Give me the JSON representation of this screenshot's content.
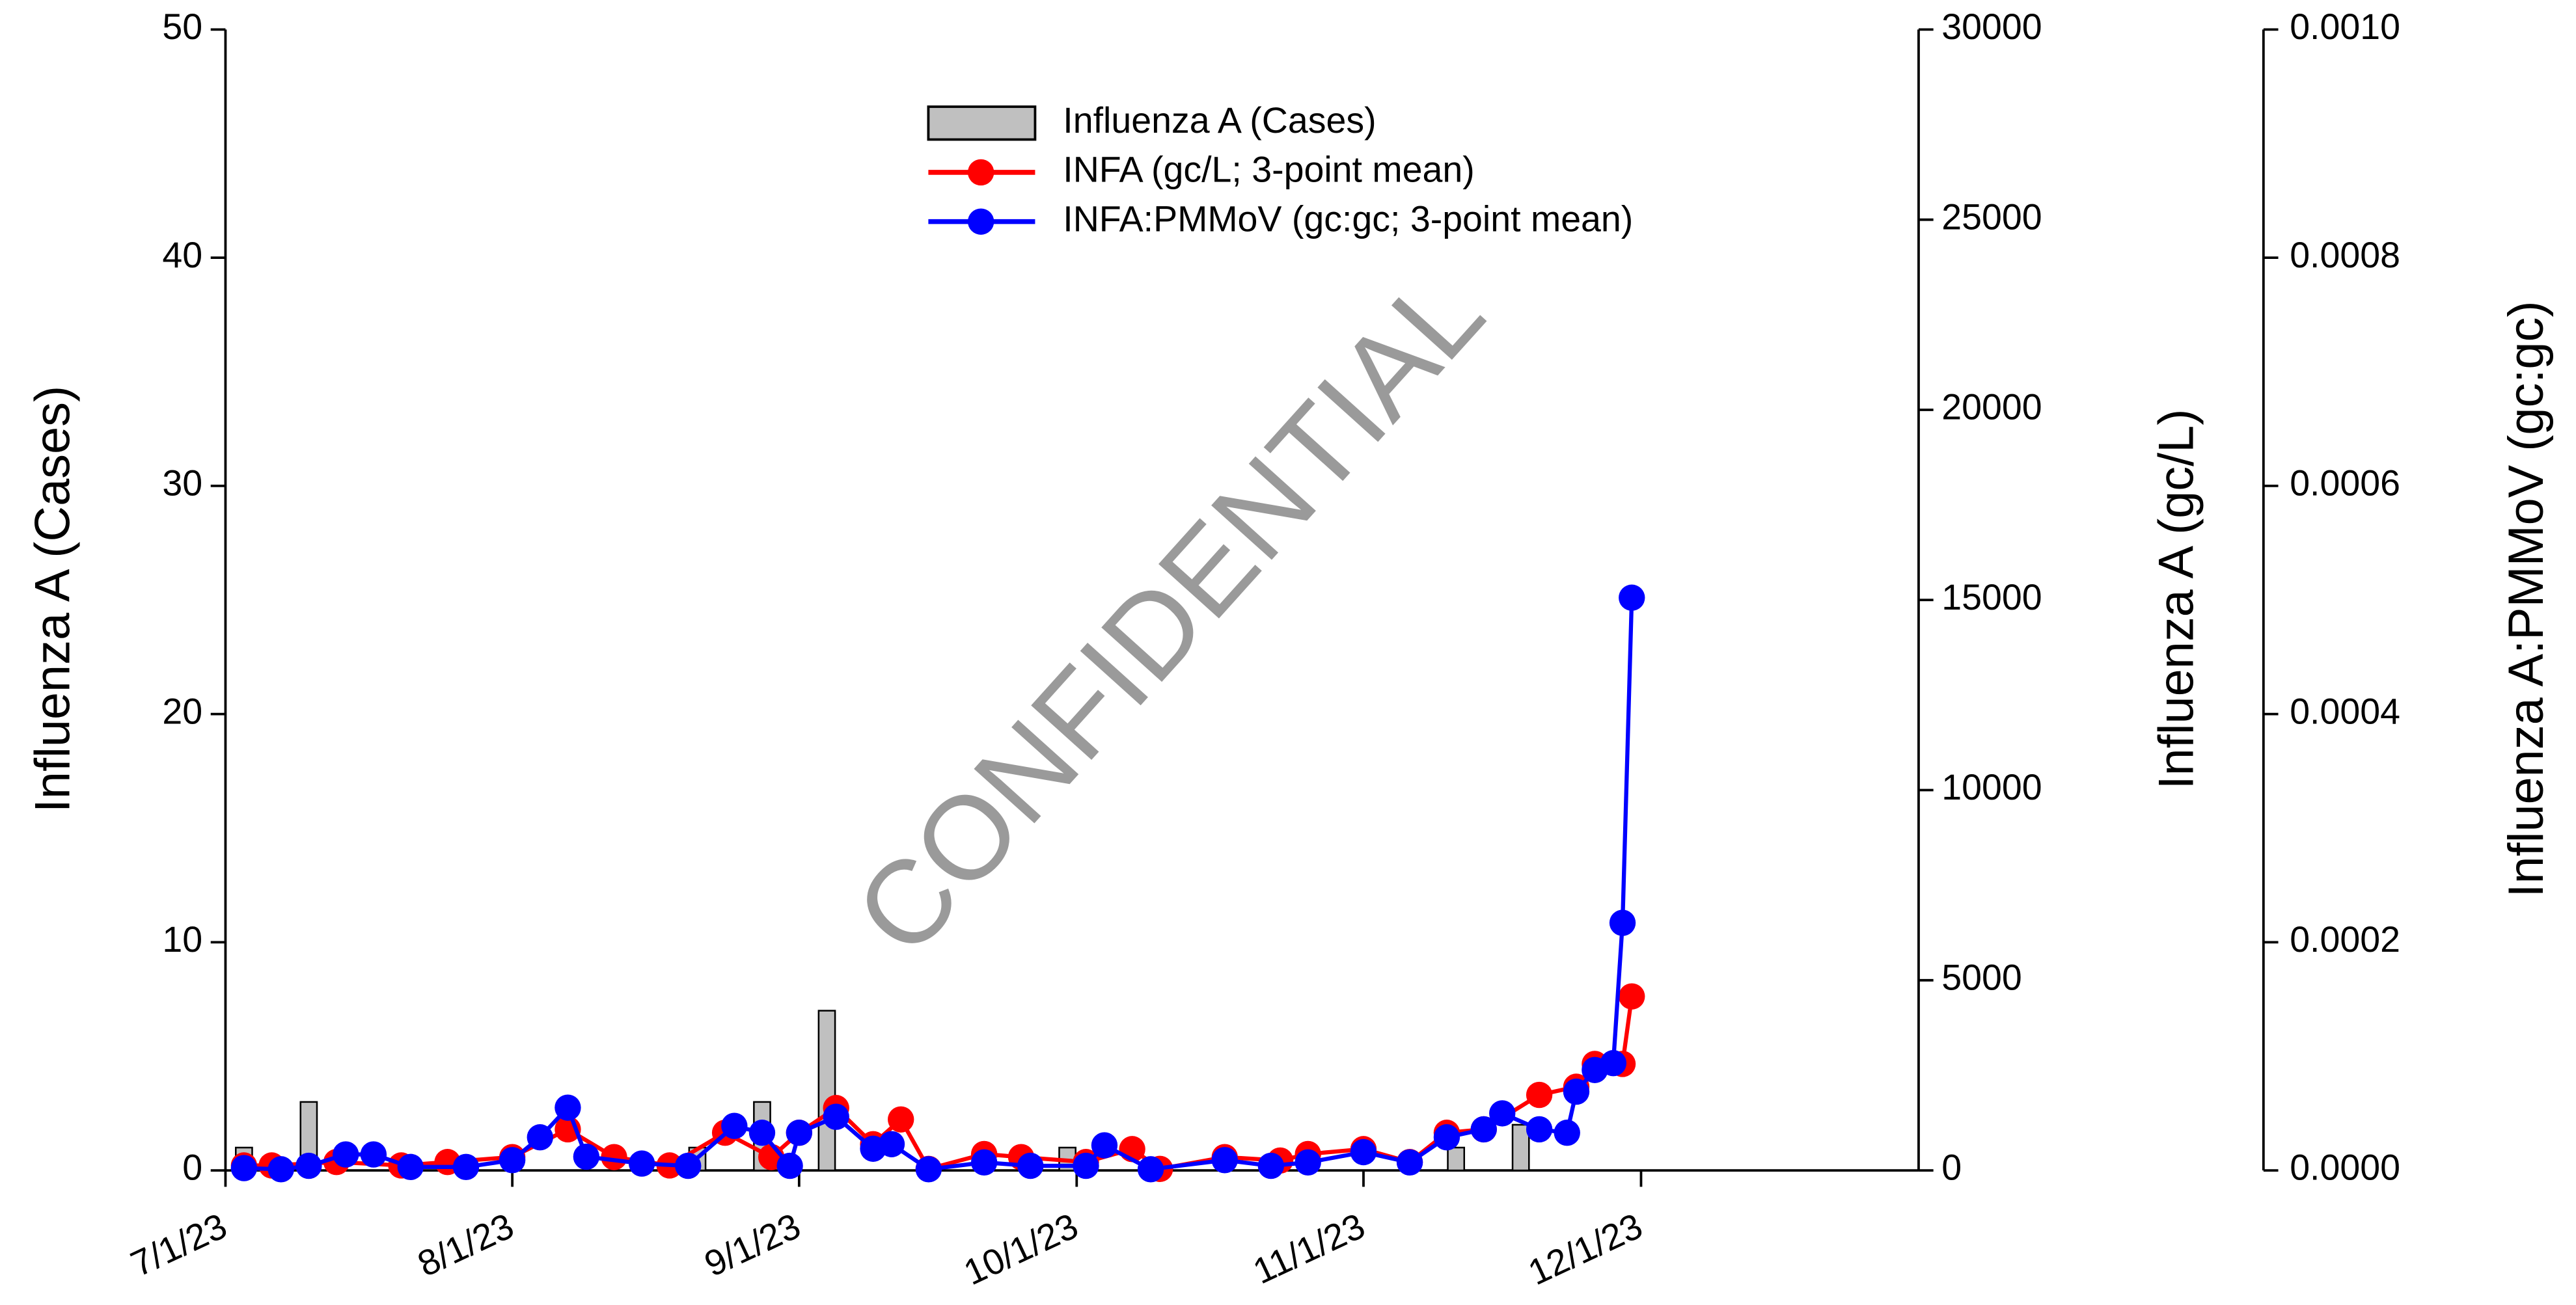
{
  "chart_data": {
    "type": "combo",
    "watermark": "CONFIDENTIAL",
    "ylabel": "Influenza A (Cases)",
    "y2label": "Influenza A (gc/L)",
    "y3label": "Influenza A:PMMoV (gc:gc)",
    "xlim": [
      "2023-07-01",
      "2023-12-31"
    ],
    "xticks": [
      {
        "value": "2023-07-01",
        "label": "7/1/23"
      },
      {
        "value": "2023-08-01",
        "label": "8/1/23"
      },
      {
        "value": "2023-09-01",
        "label": "9/1/23"
      },
      {
        "value": "2023-10-01",
        "label": "10/1/23"
      },
      {
        "value": "2023-11-01",
        "label": "11/1/23"
      },
      {
        "value": "2023-12-01",
        "label": "12/1/23"
      }
    ],
    "ylim": [
      0,
      50
    ],
    "yticks": [
      0,
      10,
      20,
      30,
      40,
      50
    ],
    "y2lim": [
      0,
      30000
    ],
    "y2ticks": [
      0,
      5000,
      10000,
      15000,
      20000,
      25000,
      30000
    ],
    "y3lim": [
      0,
      0.001
    ],
    "y3ticks": [
      {
        "value": 0,
        "label": "0.0000"
      },
      {
        "value": 0.0002,
        "label": "0.0002"
      },
      {
        "value": 0.0004,
        "label": "0.0004"
      },
      {
        "value": 0.0006,
        "label": "0.0006"
      },
      {
        "value": 0.0008,
        "label": "0.0008"
      },
      {
        "value": 0.001,
        "label": "0.0010"
      }
    ],
    "series": [
      {
        "name": "Influenza A (Cases)",
        "kind": "bar",
        "axis": "y",
        "color": "#c0c0c0",
        "x": [
          "2023-07-03",
          "2023-07-10",
          "2023-08-21",
          "2023-08-28",
          "2023-09-04",
          "2023-09-30",
          "2023-11-11",
          "2023-11-18"
        ],
        "values": [
          1,
          3,
          1,
          3,
          7,
          1,
          1,
          2
        ]
      },
      {
        "name": "INFA (gc/L; 3-point mean)",
        "kind": "line",
        "axis": "y2",
        "color": "#ff0000",
        "x": [
          "2023-07-03",
          "2023-07-06",
          "2023-07-13",
          "2023-07-20",
          "2023-07-25",
          "2023-08-01",
          "2023-08-07",
          "2023-08-12",
          "2023-08-18",
          "2023-08-24",
          "2023-08-29",
          "2023-09-01",
          "2023-09-05",
          "2023-09-09",
          "2023-09-12",
          "2023-09-15",
          "2023-09-21",
          "2023-09-25",
          "2023-10-02",
          "2023-10-07",
          "2023-10-10",
          "2023-10-17",
          "2023-10-23",
          "2023-10-26",
          "2023-11-01",
          "2023-11-06",
          "2023-11-10",
          "2023-11-14",
          "2023-11-20",
          "2023-11-24",
          "2023-11-26",
          "2023-11-29",
          "2023-11-30"
        ],
        "values": [
          130,
          130,
          220,
          130,
          220,
          350,
          1080,
          350,
          130,
          990,
          350,
          990,
          1640,
          690,
          1340,
          40,
          430,
          350,
          220,
          560,
          40,
          350,
          260,
          430,
          560,
          220,
          990,
          1080,
          1985,
          2200,
          2800,
          2800,
          4575
        ]
      },
      {
        "name": "INFA:PMMoV (gc:gc; 3-point mean)",
        "kind": "line",
        "axis": "y3",
        "color": "#0000ff",
        "x": [
          "2023-07-03",
          "2023-07-07",
          "2023-07-10",
          "2023-07-14",
          "2023-07-17",
          "2023-07-21",
          "2023-07-27",
          "2023-08-01",
          "2023-08-04",
          "2023-08-07",
          "2023-08-09",
          "2023-08-15",
          "2023-08-20",
          "2023-08-25",
          "2023-08-28",
          "2023-08-31",
          "2023-09-01",
          "2023-09-05",
          "2023-09-09",
          "2023-09-11",
          "2023-09-15",
          "2023-09-21",
          "2023-09-26",
          "2023-10-02",
          "2023-10-04",
          "2023-10-09",
          "2023-10-17",
          "2023-10-22",
          "2023-10-26",
          "2023-11-01",
          "2023-11-06",
          "2023-11-10",
          "2023-11-14",
          "2023-11-16",
          "2023-11-20",
          "2023-11-23",
          "2023-11-24",
          "2023-11-26",
          "2023-11-28",
          "2023-11-29",
          "2023-11-30"
        ],
        "values": [
          2e-06,
          1e-06,
          4e-06,
          1.4e-05,
          1.4e-05,
          3e-06,
          3e-06,
          9e-06,
          2.9e-05,
          5.5e-05,
          1.2e-05,
          6e-06,
          4e-06,
          3.9e-05,
          3.3e-05,
          4e-06,
          3.3e-05,
          4.7e-05,
          1.9e-05,
          2.3e-05,
          1e-06,
          7e-06,
          4e-06,
          4e-06,
          2.2e-05,
          1e-06,
          9e-06,
          4e-06,
          7e-06,
          1.6e-05,
          7e-06,
          2.9e-05,
          3.6e-05,
          5e-05,
          3.6e-05,
          3.3e-05,
          6.9e-05,
          8.8e-05,
          9.4e-05,
          0.000217,
          0.000502
        ]
      }
    ]
  }
}
